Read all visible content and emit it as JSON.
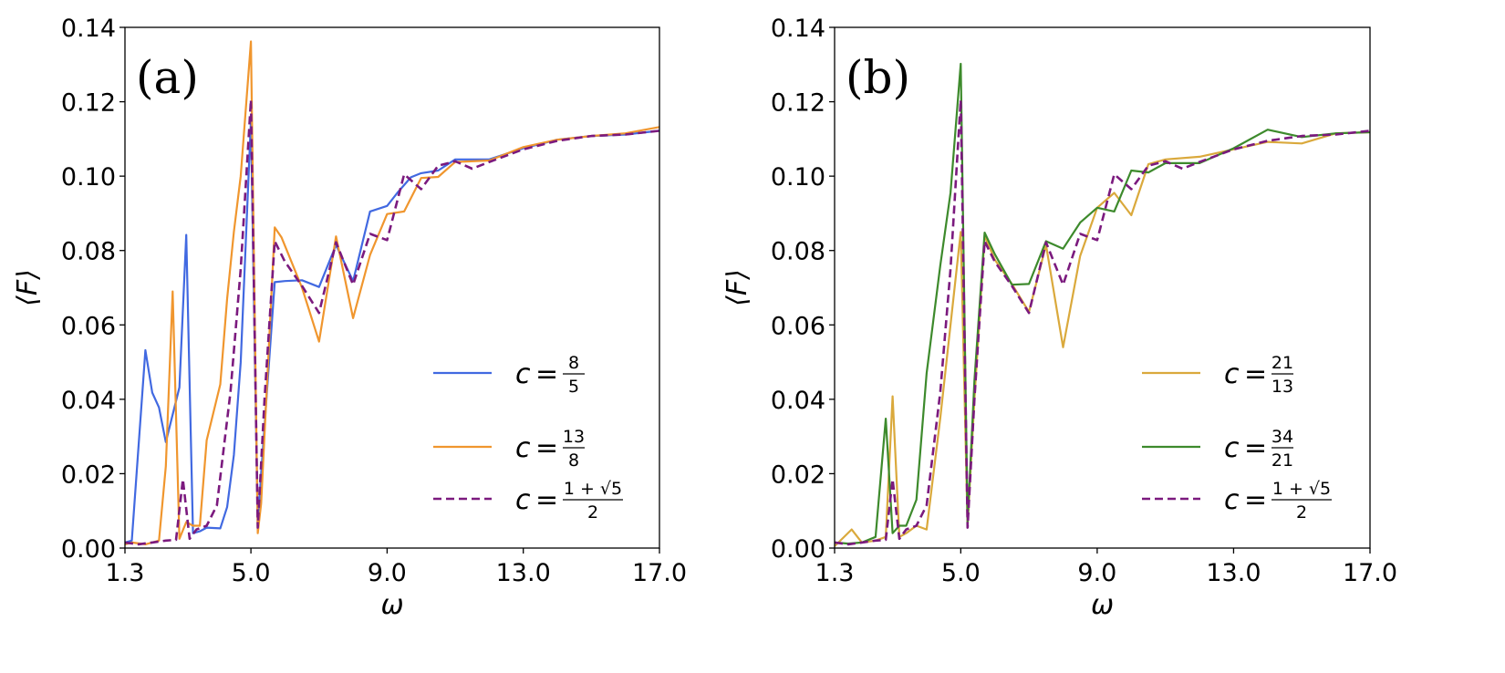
{
  "chart_data": [
    {
      "type": "line",
      "panel_label": "(a)",
      "xlabel": "ω",
      "ylabel": "⟨F⟩",
      "xlim": [
        1.3,
        17.0
      ],
      "ylim": [
        0.0,
        0.14
      ],
      "xticks": [
        "1.3",
        "5.0",
        "9.0",
        "13.0",
        "17.0"
      ],
      "xtick_values": [
        1.3,
        5.0,
        9.0,
        13.0,
        17.0
      ],
      "yticks": [
        "0.00",
        "0.02",
        "0.04",
        "0.06",
        "0.08",
        "0.10",
        "0.12",
        "0.14"
      ],
      "ytick_values": [
        0.0,
        0.02,
        0.04,
        0.06,
        0.08,
        0.1,
        0.12,
        0.14
      ],
      "legend_position": "center-right",
      "series": [
        {
          "name": "c = 8/5",
          "legend": {
            "lhs": "c",
            "eq": "=",
            "num": "8",
            "den": "5"
          },
          "color": "#4169e1",
          "dashed": false,
          "x": [
            1.3,
            1.5,
            1.9,
            2.1,
            2.3,
            2.5,
            2.9,
            3.1,
            3.3,
            3.5,
            3.7,
            4.1,
            4.3,
            4.5,
            4.7,
            5.0,
            5.2,
            5.3,
            5.7,
            6.0,
            6.5,
            7.0,
            7.5,
            8.0,
            8.5,
            9.0,
            9.3,
            9.7,
            10.0,
            10.5,
            11.0,
            12.0,
            13.0,
            14.0,
            15.0,
            16.0,
            17.0
          ],
          "y": [
            0.0015,
            0.002,
            0.0532,
            0.0418,
            0.0378,
            0.0285,
            0.0432,
            0.0842,
            0.004,
            0.0045,
            0.0055,
            0.0053,
            0.011,
            0.025,
            0.05,
            0.115,
            0.006,
            0.02,
            0.0715,
            0.0718,
            0.072,
            0.0702,
            0.0815,
            0.0718,
            0.0905,
            0.092,
            0.0955,
            0.0997,
            0.1008,
            0.1015,
            0.1045,
            0.1045,
            0.1075,
            0.1098,
            0.1108,
            0.1112,
            0.1122
          ]
        },
        {
          "name": "c = 13/8",
          "legend": {
            "lhs": "c",
            "eq": "=",
            "num": "13",
            "den": "8"
          },
          "color": "#f0962e",
          "dashed": false,
          "x": [
            1.3,
            1.5,
            1.9,
            2.3,
            2.5,
            2.7,
            2.9,
            3.1,
            3.3,
            3.5,
            3.7,
            4.1,
            4.3,
            4.5,
            4.7,
            5.0,
            5.2,
            5.3,
            5.7,
            5.9,
            6.1,
            6.5,
            7.0,
            7.5,
            8.0,
            8.5,
            9.0,
            9.5,
            10.0,
            10.5,
            11.0,
            12.0,
            13.0,
            14.0,
            15.0,
            16.0,
            17.0
          ],
          "y": [
            0.001,
            0.0015,
            0.001,
            0.002,
            0.022,
            0.069,
            0.0025,
            0.007,
            0.006,
            0.006,
            0.029,
            0.044,
            0.067,
            0.085,
            0.1,
            0.1362,
            0.004,
            0.012,
            0.0862,
            0.0835,
            0.079,
            0.07,
            0.0555,
            0.0838,
            0.0618,
            0.0788,
            0.0898,
            0.0905,
            0.0995,
            0.0998,
            0.1038,
            0.1042,
            0.1078,
            0.1098,
            0.1108,
            0.1115,
            0.1132
          ]
        },
        {
          "name": "c = (1+√5)/2",
          "legend": {
            "lhs": "c",
            "eq": "=",
            "num": "1 + √5",
            "den": "2"
          },
          "color": "#7b1a7e",
          "dashed": true,
          "x": [
            1.3,
            1.7,
            2.1,
            2.5,
            2.8,
            3.0,
            3.2,
            3.4,
            3.7,
            4.0,
            4.4,
            4.7,
            5.0,
            5.2,
            5.4,
            5.7,
            6.0,
            6.5,
            7.0,
            7.5,
            8.0,
            8.5,
            9.0,
            9.5,
            10.0,
            10.5,
            11.0,
            11.5,
            12.0,
            13.0,
            14.0,
            15.0,
            16.0,
            17.0
          ],
          "y": [
            0.0015,
            0.001,
            0.0015,
            0.002,
            0.0022,
            0.0185,
            0.0025,
            0.005,
            0.006,
            0.0115,
            0.042,
            0.075,
            0.1205,
            0.0055,
            0.04,
            0.0825,
            0.077,
            0.0705,
            0.0632,
            0.0822,
            0.0708,
            0.0845,
            0.0828,
            0.1005,
            0.0965,
            0.1028,
            0.104,
            0.102,
            0.1038,
            0.1072,
            0.1095,
            0.1108,
            0.1112,
            0.1122
          ]
        }
      ]
    },
    {
      "type": "line",
      "panel_label": "(b)",
      "xlabel": "ω",
      "ylabel": "⟨F⟩",
      "xlim": [
        1.3,
        17.0
      ],
      "ylim": [
        0.0,
        0.14
      ],
      "xticks": [
        "1.3",
        "5.0",
        "9.0",
        "13.0",
        "17.0"
      ],
      "xtick_values": [
        1.3,
        5.0,
        9.0,
        13.0,
        17.0
      ],
      "yticks": [
        "0.00",
        "0.02",
        "0.04",
        "0.06",
        "0.08",
        "0.10",
        "0.12",
        "0.14"
      ],
      "ytick_values": [
        0.0,
        0.02,
        0.04,
        0.06,
        0.08,
        0.1,
        0.12,
        0.14
      ],
      "legend_position": "center-right",
      "series": [
        {
          "name": "c = 21/13",
          "legend": {
            "lhs": "c",
            "eq": "=",
            "num": "21",
            "den": "13"
          },
          "color": "#daa93c",
          "dashed": false,
          "x": [
            1.3,
            1.8,
            2.1,
            2.5,
            2.8,
            3.0,
            3.2,
            3.4,
            3.7,
            4.0,
            4.4,
            4.7,
            5.0,
            5.2,
            5.4,
            5.7,
            6.0,
            6.5,
            7.0,
            7.5,
            8.0,
            8.5,
            9.0,
            9.5,
            10.0,
            10.5,
            11.0,
            12.0,
            13.0,
            14.0,
            15.0,
            16.0,
            17.0
          ],
          "y": [
            0.0005,
            0.005,
            0.0015,
            0.002,
            0.003,
            0.0408,
            0.003,
            0.004,
            0.006,
            0.005,
            0.035,
            0.06,
            0.085,
            0.006,
            0.04,
            0.084,
            0.0775,
            0.071,
            0.0635,
            0.0815,
            0.054,
            0.0785,
            0.0915,
            0.0955,
            0.0895,
            0.1032,
            0.1045,
            0.1052,
            0.1072,
            0.1092,
            0.1088,
            0.1115,
            0.1118
          ]
        },
        {
          "name": "c = 34/21",
          "legend": {
            "lhs": "c",
            "eq": "=",
            "num": "34",
            "den": "21"
          },
          "color": "#3d8a2c",
          "dashed": false,
          "x": [
            1.3,
            1.7,
            2.1,
            2.5,
            2.8,
            3.0,
            3.2,
            3.4,
            3.7,
            4.0,
            4.4,
            4.7,
            5.0,
            5.2,
            5.4,
            5.7,
            6.0,
            6.5,
            7.0,
            7.5,
            8.0,
            8.5,
            9.0,
            9.5,
            10.0,
            10.5,
            11.0,
            12.0,
            13.0,
            14.0,
            15.0,
            16.0,
            17.0
          ],
          "y": [
            0.0015,
            0.0012,
            0.0015,
            0.003,
            0.0348,
            0.004,
            0.006,
            0.006,
            0.013,
            0.047,
            0.076,
            0.0955,
            0.1302,
            0.007,
            0.045,
            0.0848,
            0.079,
            0.0708,
            0.071,
            0.0825,
            0.0805,
            0.0875,
            0.0915,
            0.0905,
            0.1015,
            0.101,
            0.1035,
            0.1035,
            0.1075,
            0.1125,
            0.1105,
            0.1115,
            0.1118
          ]
        },
        {
          "name": "c = (1+√5)/2",
          "legend": {
            "lhs": "c",
            "eq": "=",
            "num": "1 + √5",
            "den": "2"
          },
          "color": "#7b1a7e",
          "dashed": true,
          "x": [
            1.3,
            1.7,
            2.1,
            2.5,
            2.8,
            3.0,
            3.2,
            3.4,
            3.7,
            4.0,
            4.4,
            4.7,
            5.0,
            5.2,
            5.4,
            5.7,
            6.0,
            6.5,
            7.0,
            7.5,
            8.0,
            8.5,
            9.0,
            9.5,
            10.0,
            10.5,
            11.0,
            11.5,
            12.0,
            13.0,
            14.0,
            15.0,
            16.0,
            17.0
          ],
          "y": [
            0.0015,
            0.001,
            0.0015,
            0.002,
            0.0022,
            0.0185,
            0.0025,
            0.005,
            0.006,
            0.0115,
            0.042,
            0.075,
            0.1205,
            0.0055,
            0.04,
            0.0825,
            0.077,
            0.0705,
            0.0632,
            0.0822,
            0.0708,
            0.0845,
            0.0828,
            0.1005,
            0.0965,
            0.1028,
            0.104,
            0.102,
            0.1038,
            0.1072,
            0.1095,
            0.1108,
            0.1112,
            0.1122
          ]
        }
      ]
    }
  ]
}
